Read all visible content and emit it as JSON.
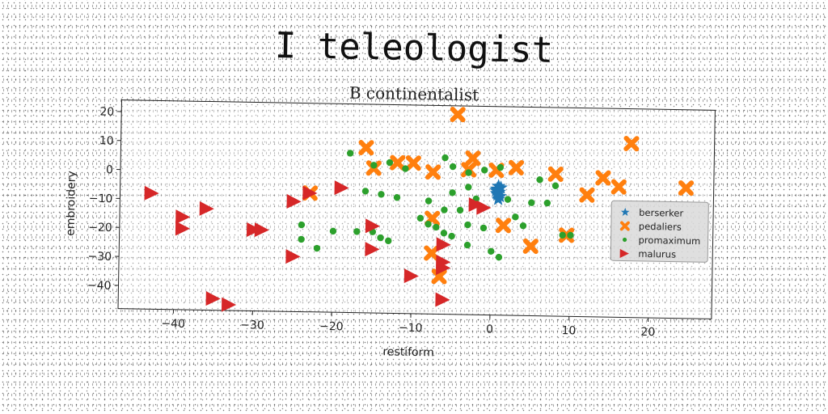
{
  "chart_data": {
    "type": "scatter",
    "title": "I teleologist",
    "subtitle": "B continentalist",
    "xlabel": "restiform",
    "ylabel": "embroidery",
    "xlim": [
      -47,
      28
    ],
    "ylim": [
      -48,
      24
    ],
    "xticks": [
      -40,
      -30,
      -20,
      -10,
      0,
      10,
      20
    ],
    "yticks": [
      20,
      10,
      0,
      -10,
      -20,
      -30,
      -40
    ],
    "grid": false,
    "legend_position": "right",
    "series": [
      {
        "name": "berserker",
        "marker": "star",
        "color": "#1f77b4",
        "points": [
          [
            0.8,
            -3.5
          ],
          [
            0.6,
            -4.5
          ],
          [
            0.9,
            -5.5
          ],
          [
            0.7,
            -6.5
          ],
          [
            1.0,
            -7.0
          ],
          [
            0.5,
            -5.0
          ],
          [
            1.1,
            -4.0
          ],
          [
            0.8,
            -8.0
          ],
          [
            0.6,
            -6.0
          ]
        ]
      },
      {
        "name": "pedaliers",
        "marker": "x",
        "color": "#ff7f0e",
        "points": [
          [
            -4.5,
            21
          ],
          [
            -16,
            9
          ],
          [
            -15,
            2
          ],
          [
            -12,
            4
          ],
          [
            -10,
            4
          ],
          [
            -7.5,
            1
          ],
          [
            -2.5,
            6
          ],
          [
            -3,
            2
          ],
          [
            0.5,
            2
          ],
          [
            3,
            3
          ],
          [
            8,
            1
          ],
          [
            14,
            0
          ],
          [
            12,
            -6
          ],
          [
            16,
            -3
          ],
          [
            17.5,
            12
          ],
          [
            24.5,
            -3
          ],
          [
            -23,
            -7
          ],
          [
            -7.5,
            -15
          ],
          [
            1.5,
            -17
          ],
          [
            -7.5,
            -27
          ],
          [
            -6.5,
            -35
          ],
          [
            5,
            -24
          ],
          [
            9.5,
            -20
          ]
        ]
      },
      {
        "name": "promaximum",
        "marker": "circle",
        "color": "#2ca02c",
        "points": [
          [
            -18,
            7
          ],
          [
            -15,
            3
          ],
          [
            -13,
            4
          ],
          [
            -11,
            2
          ],
          [
            -6,
            6
          ],
          [
            -5,
            3
          ],
          [
            -3,
            1
          ],
          [
            -1,
            2
          ],
          [
            1,
            3
          ],
          [
            -16,
            -6
          ],
          [
            -14,
            -7
          ],
          [
            -12,
            -8
          ],
          [
            -8,
            -9
          ],
          [
            -5,
            -6
          ],
          [
            -3,
            -4
          ],
          [
            -2,
            -8
          ],
          [
            -6,
            -12
          ],
          [
            -4,
            -12
          ],
          [
            -9,
            -15
          ],
          [
            -7,
            -18
          ],
          [
            -3,
            -17
          ],
          [
            -1,
            -18
          ],
          [
            -17,
            -20
          ],
          [
            -20,
            -20
          ],
          [
            -24,
            -18
          ],
          [
            -22,
            -26
          ],
          [
            -24,
            -23
          ],
          [
            -15,
            -20
          ],
          [
            -14,
            -22
          ],
          [
            -13,
            -23
          ],
          [
            -6,
            -20
          ],
          [
            -5,
            -21
          ],
          [
            -3,
            -24
          ],
          [
            0,
            -26
          ],
          [
            1,
            -28
          ],
          [
            2,
            -8
          ],
          [
            3,
            -14
          ],
          [
            5,
            -9
          ],
          [
            6,
            -1
          ],
          [
            8,
            -3
          ],
          [
            7,
            -9
          ],
          [
            9,
            -20
          ],
          [
            10,
            -20
          ],
          [
            4,
            -17
          ],
          [
            -8,
            -17
          ]
        ]
      },
      {
        "name": "malurus",
        "marker": "triangle-right",
        "color": "#d62728",
        "points": [
          [
            -43,
            -8
          ],
          [
            -39,
            -16
          ],
          [
            -39,
            -20
          ],
          [
            -36,
            -13
          ],
          [
            -30,
            -20
          ],
          [
            -29,
            -20
          ],
          [
            -25,
            -10
          ],
          [
            -25,
            -29
          ],
          [
            -23,
            -7
          ],
          [
            -19,
            -5
          ],
          [
            -15,
            -18
          ],
          [
            -15,
            -26
          ],
          [
            -10,
            -35
          ],
          [
            -6,
            -24
          ],
          [
            -6,
            -30
          ],
          [
            -6,
            -32
          ],
          [
            -6,
            -43
          ],
          [
            -2,
            -10
          ],
          [
            -1,
            -11
          ],
          [
            -35,
            -44
          ],
          [
            -33,
            -46
          ]
        ]
      }
    ]
  }
}
